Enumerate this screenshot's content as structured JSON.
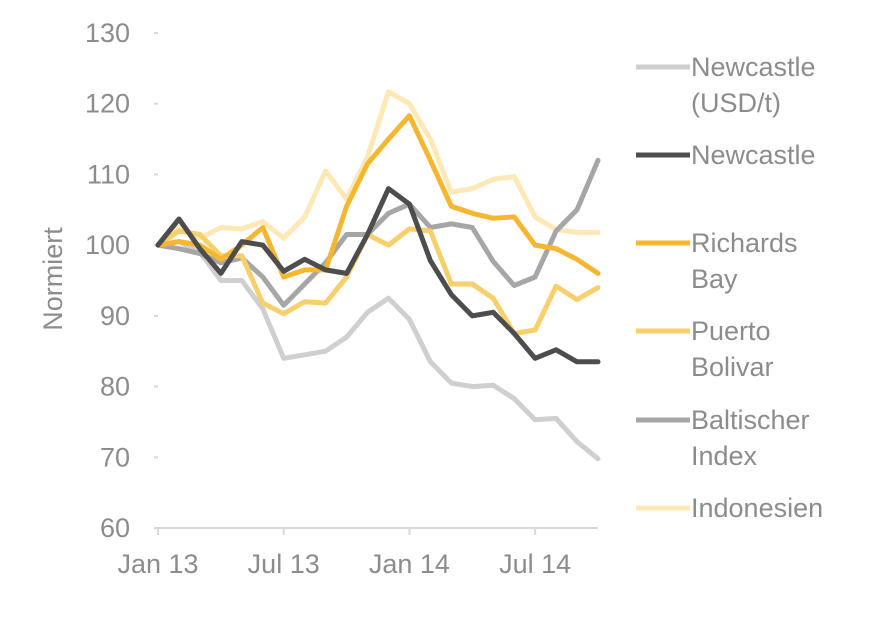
{
  "chart_data": {
    "type": "line",
    "title": "",
    "xlabel": "",
    "ylabel": "Normiert",
    "ylim": [
      60,
      130
    ],
    "yticks": [
      60,
      70,
      80,
      90,
      100,
      110,
      120,
      130
    ],
    "xtick_labels": [
      "Jan 13",
      "Jul 13",
      "Jan 14",
      "Jul 14"
    ],
    "x": [
      "2013-01",
      "2013-02",
      "2013-03",
      "2013-04",
      "2013-05",
      "2013-06",
      "2013-07",
      "2013-08",
      "2013-09",
      "2013-10",
      "2013-11",
      "2013-12",
      "2014-01",
      "2014-02",
      "2014-03",
      "2014-04",
      "2014-05",
      "2014-06",
      "2014-07",
      "2014-08",
      "2014-09",
      "2014-10"
    ],
    "grid": false,
    "legend_position": "right",
    "series": [
      {
        "name": "Newcastle (USD/t)",
        "name_lines": [
          "Newcastle",
          "(USD/t)"
        ],
        "color": "#cfcfcf",
        "values": [
          100,
          100.5,
          99,
          95,
          95,
          91,
          84,
          84.5,
          85,
          87,
          90.5,
          92.5,
          89.5,
          83.5,
          80.5,
          80,
          80.2,
          78.3,
          75.3,
          75.5,
          72.2,
          69.8
        ]
      },
      {
        "name": "Newcastle",
        "name_lines": [
          "Newcastle"
        ],
        "color": "#4d4d4d",
        "values": [
          100,
          103.7,
          99.5,
          96,
          100.5,
          100,
          96.3,
          98,
          96.5,
          96,
          101.5,
          108,
          105.8,
          97.8,
          93,
          90,
          90.5,
          87.5,
          84,
          85.2,
          83.5,
          83.5
        ]
      },
      {
        "name": "Richards Bay",
        "name_lines": [
          "Richards",
          "Bay"
        ],
        "color": "#f5b731",
        "values": [
          100,
          100.5,
          100,
          98,
          100,
          102.5,
          95.5,
          96.5,
          96.5,
          105.5,
          111.5,
          115,
          118.3,
          112,
          105.5,
          104.5,
          103.8,
          104,
          100,
          99.5,
          98,
          96
        ]
      },
      {
        "name": "Puerto Bolivar",
        "name_lines": [
          "Puerto",
          "Bolivar"
        ],
        "color": "#f8cf6d",
        "values": [
          100,
          102,
          101.5,
          98.5,
          98.5,
          91.8,
          90.3,
          92,
          91.8,
          95.5,
          101.5,
          100,
          102.3,
          102,
          94.5,
          94.5,
          92.5,
          87.5,
          88,
          94.2,
          92.3,
          94
        ]
      },
      {
        "name": "Baltischer Index",
        "name_lines": [
          "Baltischer",
          "Index"
        ],
        "color": "#a6a6a6",
        "values": [
          100,
          99.5,
          98.8,
          97.5,
          98.2,
          95.5,
          91.5,
          94.5,
          97.5,
          101.5,
          101.5,
          104.5,
          105.8,
          102.5,
          103,
          102.5,
          97.7,
          94.3,
          95.5,
          102,
          105,
          112
        ]
      },
      {
        "name": "Indonesien",
        "name_lines": [
          "Indonesien"
        ],
        "color": "#fde8b6",
        "values": [
          100,
          102.5,
          101,
          102.5,
          102.3,
          103.3,
          101,
          104,
          110.5,
          106.5,
          112.5,
          121.7,
          120,
          115,
          107.5,
          108,
          109.3,
          109.7,
          104,
          102.2,
          101.8,
          101.8
        ]
      }
    ]
  }
}
